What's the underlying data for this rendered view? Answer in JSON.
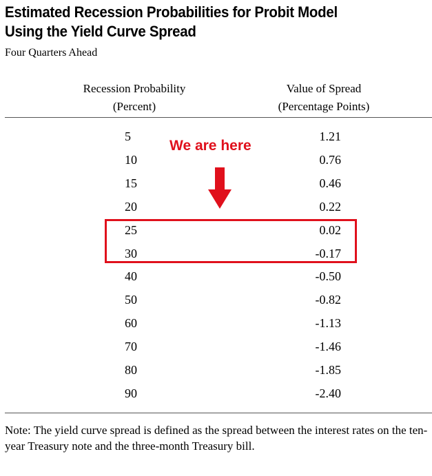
{
  "title_line1": "Estimated Recession Probabilities for Probit Model",
  "title_line2": "Using the Yield Curve Spread",
  "subtitle": "Four Quarters Ahead",
  "columns": {
    "left_line1": "Recession Probability",
    "left_line2": "(Percent)",
    "right_line1": "Value of Spread",
    "right_line2": "(Percentage Points)"
  },
  "annotation": "We are here",
  "note": "Note:  The yield curve spread is defined as the spread between the interest rates on the ten-year Treasury note and the three-month Treasury bill.",
  "colors": {
    "highlight": "#e0101c",
    "text": "#000000",
    "rule": "#555555"
  },
  "chart_data": {
    "type": "table",
    "title": "Estimated Recession Probabilities for Probit Model Using the Yield Curve Spread",
    "subtitle": "Four Quarters Ahead",
    "columns": [
      "Recession Probability (Percent)",
      "Value of Spread (Percentage Points)"
    ],
    "rows": [
      {
        "probability": "5",
        "spread": "1.21"
      },
      {
        "probability": "10",
        "spread": "0.76"
      },
      {
        "probability": "15",
        "spread": "0.46"
      },
      {
        "probability": "20",
        "spread": "0.22"
      },
      {
        "probability": "25",
        "spread": "0.02"
      },
      {
        "probability": "30",
        "spread": "-0.17"
      },
      {
        "probability": "40",
        "spread": "-0.50"
      },
      {
        "probability": "50",
        "spread": "-0.82"
      },
      {
        "probability": "60",
        "spread": "-1.13"
      },
      {
        "probability": "70",
        "spread": "-1.46"
      },
      {
        "probability": "80",
        "spread": "-1.85"
      },
      {
        "probability": "90",
        "spread": "-2.40"
      }
    ],
    "highlighted_rows": [
      "25",
      "30"
    ]
  }
}
